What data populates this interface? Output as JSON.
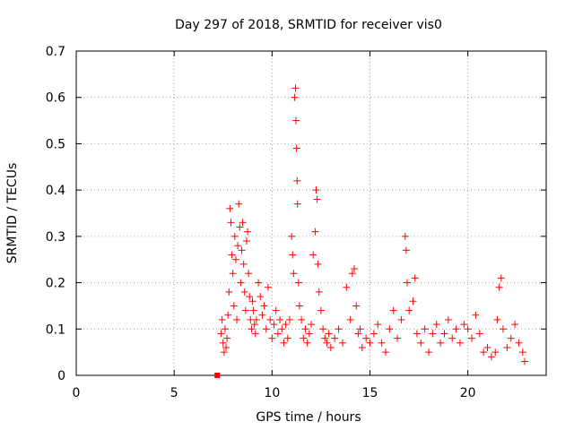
{
  "chart_data": {
    "type": "scatter",
    "title": "Day 297 of 2018, SRMTID for receiver vis0",
    "xlabel": "GPS time / hours",
    "ylabel": "SRMTID / TECUs",
    "xlim": [
      0,
      24
    ],
    "ylim": [
      0,
      0.7
    ],
    "xticks": [
      0,
      5,
      10,
      15,
      20
    ],
    "yticks": [
      0,
      0.1,
      0.2,
      0.3,
      0.4,
      0.5,
      0.6,
      0.7
    ],
    "xtick_labels": [
      "0",
      "5",
      "10",
      "15",
      "20"
    ],
    "ytick_labels": [
      "0",
      "0.1",
      "0.2",
      "0.3",
      "0.4",
      "0.5",
      "0.6",
      "0.7"
    ],
    "grid": true,
    "marker": "+",
    "color": "#ff0000",
    "series": [
      {
        "name": "SRMTID vis0",
        "x": [
          7.2,
          7.4,
          7.45,
          7.5,
          7.55,
          7.6,
          7.65,
          7.7,
          7.75,
          7.8,
          7.85,
          7.9,
          7.95,
          8.0,
          8.05,
          8.1,
          8.15,
          8.2,
          8.25,
          8.3,
          8.35,
          8.4,
          8.45,
          8.5,
          8.55,
          8.6,
          8.65,
          8.7,
          8.75,
          8.8,
          8.85,
          8.9,
          8.95,
          9.0,
          9.05,
          9.1,
          9.15,
          9.2,
          9.3,
          9.4,
          9.5,
          9.6,
          9.7,
          9.8,
          9.9,
          10.0,
          10.1,
          10.2,
          10.3,
          10.4,
          10.5,
          10.6,
          10.7,
          10.8,
          10.9,
          11.0,
          11.05,
          11.1,
          11.15,
          11.2,
          11.22,
          11.25,
          11.28,
          11.3,
          11.35,
          11.4,
          11.5,
          11.6,
          11.7,
          11.8,
          11.9,
          12.0,
          12.1,
          12.2,
          12.25,
          12.3,
          12.35,
          12.4,
          12.5,
          12.6,
          12.7,
          12.8,
          12.9,
          13.0,
          13.2,
          13.4,
          13.6,
          13.8,
          14.0,
          14.1,
          14.2,
          14.3,
          14.4,
          14.5,
          14.6,
          14.8,
          15.0,
          15.2,
          15.4,
          15.6,
          15.8,
          16.0,
          16.2,
          16.4,
          16.6,
          16.8,
          16.85,
          16.9,
          17.0,
          17.2,
          17.3,
          17.4,
          17.6,
          17.8,
          18.0,
          18.2,
          18.4,
          18.6,
          18.8,
          19.0,
          19.2,
          19.4,
          19.6,
          19.8,
          20.0,
          20.2,
          20.4,
          20.6,
          20.8,
          21.0,
          21.2,
          21.4,
          21.5,
          21.6,
          21.7,
          21.8,
          22.0,
          22.2,
          22.4,
          22.6,
          22.8,
          22.9
        ],
        "y": [
          0.0,
          0.09,
          0.12,
          0.07,
          0.05,
          0.1,
          0.06,
          0.08,
          0.13,
          0.18,
          0.36,
          0.33,
          0.26,
          0.22,
          0.15,
          0.3,
          0.25,
          0.12,
          0.28,
          0.37,
          0.32,
          0.2,
          0.27,
          0.33,
          0.24,
          0.18,
          0.14,
          0.29,
          0.31,
          0.22,
          0.17,
          0.12,
          0.1,
          0.16,
          0.14,
          0.11,
          0.09,
          0.12,
          0.2,
          0.17,
          0.13,
          0.15,
          0.1,
          0.19,
          0.12,
          0.08,
          0.11,
          0.14,
          0.09,
          0.12,
          0.1,
          0.07,
          0.11,
          0.08,
          0.12,
          0.3,
          0.26,
          0.22,
          0.6,
          0.62,
          0.55,
          0.49,
          0.42,
          0.37,
          0.2,
          0.15,
          0.12,
          0.08,
          0.1,
          0.07,
          0.09,
          0.11,
          0.26,
          0.31,
          0.4,
          0.38,
          0.24,
          0.18,
          0.14,
          0.1,
          0.08,
          0.07,
          0.09,
          0.06,
          0.08,
          0.1,
          0.07,
          0.19,
          0.12,
          0.22,
          0.23,
          0.15,
          0.09,
          0.1,
          0.06,
          0.08,
          0.07,
          0.09,
          0.11,
          0.07,
          0.05,
          0.1,
          0.14,
          0.08,
          0.12,
          0.3,
          0.27,
          0.2,
          0.14,
          0.16,
          0.21,
          0.09,
          0.07,
          0.1,
          0.05,
          0.09,
          0.11,
          0.07,
          0.09,
          0.12,
          0.08,
          0.1,
          0.07,
          0.11,
          0.1,
          0.08,
          0.13,
          0.09,
          0.05,
          0.06,
          0.04,
          0.05,
          0.12,
          0.19,
          0.21,
          0.1,
          0.06,
          0.08,
          0.11,
          0.07,
          0.05,
          0.03
        ]
      }
    ]
  }
}
